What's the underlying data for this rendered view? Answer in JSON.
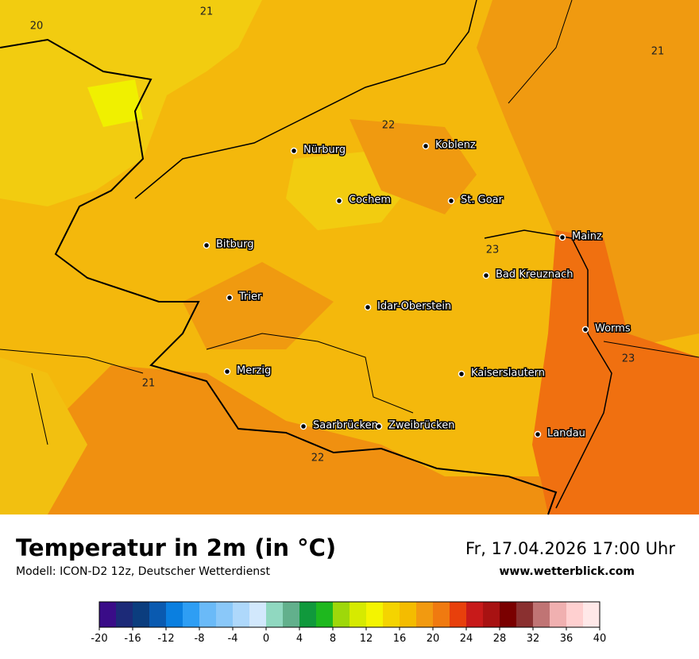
{
  "header": {
    "title": "Temperatur in 2m (in °C)",
    "model": "Modell: ICON-D2 12z, Deutscher Wetterdienst",
    "datetime": "Fr, 17.04.2026 17:00 Uhr",
    "website": "www.wetterblick.com"
  },
  "cities": [
    "Nürburg",
    "Koblenz",
    "Cochem",
    "St. Goar",
    "Mainz",
    "Bitburg",
    "Bad Kreuznach",
    "Trier",
    "Idar-Oberstein",
    "Worms",
    "Merzig",
    "Kaiserslautern",
    "Saarbrücken",
    "Zweibrücken",
    "Landau"
  ],
  "contour_labels": [
    "21",
    "20",
    "21",
    "22",
    "23",
    "23",
    "21",
    "22"
  ],
  "legend": {
    "range": [
      -20,
      40
    ],
    "ticks": [
      -20,
      -16,
      -12,
      -8,
      -4,
      0,
      4,
      8,
      12,
      16,
      20,
      24,
      28,
      32,
      36,
      40
    ],
    "colors": [
      "#3a0c88",
      "#1c2a78",
      "#0b3d7e",
      "#0a5ab0",
      "#0a7fe0",
      "#2e9ef4",
      "#6abaf8",
      "#8ac8f9",
      "#aed8fb",
      "#d2e8fc",
      "#90d8c0",
      "#62b08c",
      "#10993c",
      "#1eb81e",
      "#9ed80a",
      "#d6ea00",
      "#f4f400",
      "#f4d400",
      "#f4bc00",
      "#f29a10",
      "#f07a10",
      "#e8400c",
      "#c81a1a",
      "#a81212",
      "#7a0000",
      "#8a3030",
      "#c07474",
      "#f0b0b0",
      "#ffd0d0",
      "#ffe8e8"
    ]
  }
}
